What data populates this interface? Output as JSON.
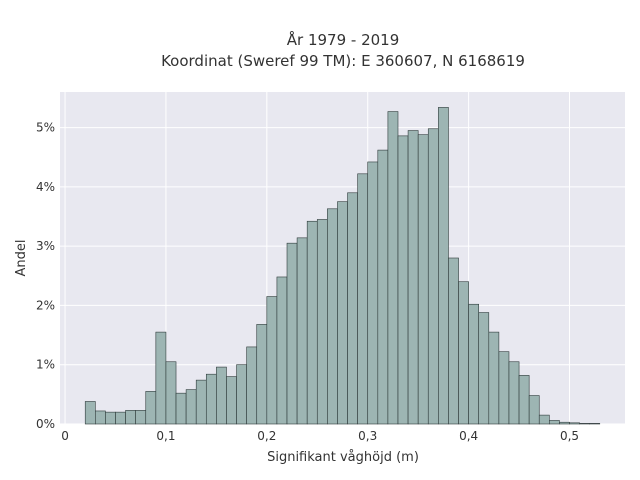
{
  "chart_data": {
    "type": "bar",
    "title_lines": [
      "År 1979 - 2019",
      "Koordinat (Sweref 99 TM): E 360607, N 6168619"
    ],
    "xlabel": "Signifikant våghöjd (m)",
    "ylabel": "Andel",
    "xlim": [
      -0.005,
      0.555
    ],
    "ylim": [
      0,
      5.6
    ],
    "x_ticks": [
      {
        "value": 0.0,
        "label": "0"
      },
      {
        "value": 0.1,
        "label": "0,1"
      },
      {
        "value": 0.2,
        "label": "0,2"
      },
      {
        "value": 0.3,
        "label": "0,3"
      },
      {
        "value": 0.4,
        "label": "0,4"
      },
      {
        "value": 0.5,
        "label": "0,5"
      }
    ],
    "y_ticks": [
      {
        "value": 0,
        "label": "0%"
      },
      {
        "value": 1,
        "label": "1%"
      },
      {
        "value": 2,
        "label": "2%"
      },
      {
        "value": 3,
        "label": "3%"
      },
      {
        "value": 4,
        "label": "4%"
      },
      {
        "value": 5,
        "label": "5%"
      }
    ],
    "bin_width": 0.01,
    "bin_starts": [
      0.02,
      0.03,
      0.04,
      0.05,
      0.06,
      0.07,
      0.08,
      0.09,
      0.1,
      0.11,
      0.12,
      0.13,
      0.14,
      0.15,
      0.16,
      0.17,
      0.18,
      0.19,
      0.2,
      0.21,
      0.22,
      0.23,
      0.24,
      0.25,
      0.26,
      0.27,
      0.28,
      0.29,
      0.3,
      0.31,
      0.32,
      0.33,
      0.34,
      0.35,
      0.36,
      0.37,
      0.38,
      0.39,
      0.4,
      0.41,
      0.42,
      0.43,
      0.44,
      0.45,
      0.46,
      0.47,
      0.48,
      0.49,
      0.5,
      0.51,
      0.52
    ],
    "values": [
      0.38,
      0.22,
      0.2,
      0.2,
      0.23,
      0.23,
      0.55,
      1.55,
      1.05,
      0.52,
      0.58,
      0.74,
      0.84,
      0.96,
      0.8,
      1.0,
      1.3,
      1.68,
      2.15,
      2.48,
      3.05,
      3.14,
      3.42,
      3.45,
      3.63,
      3.75,
      3.9,
      4.22,
      4.42,
      4.62,
      5.27,
      4.86,
      4.95,
      4.88,
      4.98,
      5.34,
      2.8,
      2.4,
      2.02,
      1.88,
      1.55,
      1.22,
      1.05,
      0.82,
      0.48,
      0.15,
      0.06,
      0.03,
      0.02,
      0.01,
      0.01
    ],
    "grid": true,
    "legend": "none",
    "colors": {
      "background": "#E8E8F0",
      "bar_fill": "#9DB5B3",
      "bar_edge": "#2E3A3A",
      "grid": "#FFFFFF",
      "text": "#333333"
    }
  }
}
